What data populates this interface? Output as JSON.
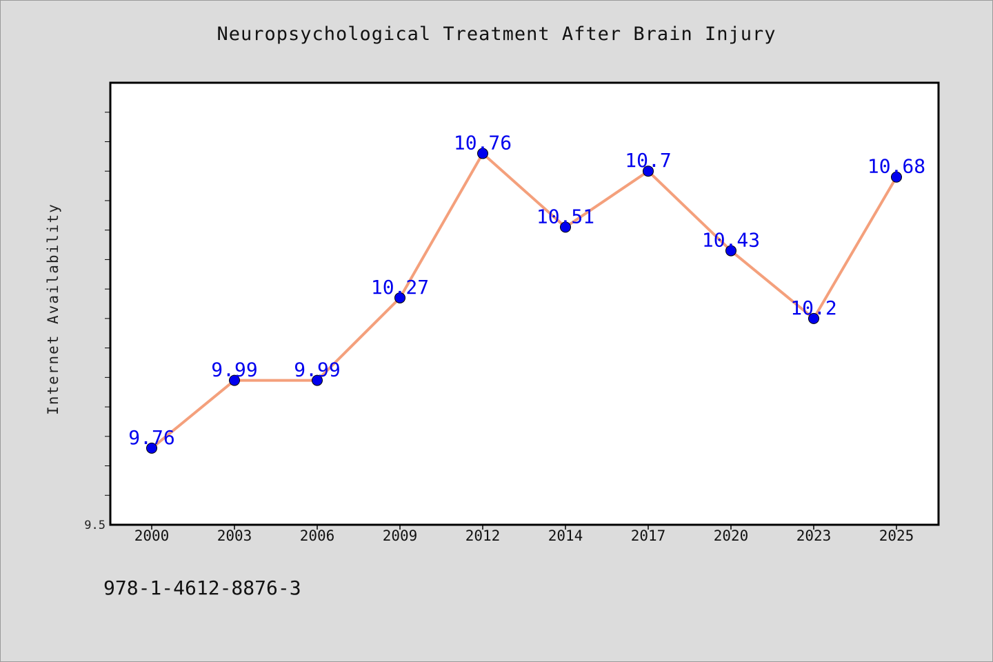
{
  "chart_data": {
    "type": "line",
    "title": "Neuropsychological Treatment After Brain Injury",
    "ylabel": "Internet Availability",
    "xlabel": "",
    "categories": [
      "2000",
      "2003",
      "2006",
      "2009",
      "2012",
      "2014",
      "2017",
      "2020",
      "2023",
      "2025"
    ],
    "series": [
      {
        "values": [
          9.76,
          9.99,
          9.99,
          10.27,
          10.76,
          10.51,
          10.7,
          10.43,
          10.2,
          10.68
        ],
        "data_labels": [
          "9.76",
          "9.99",
          "9.99",
          "10.27",
          "10.76",
          "10.51",
          "10.7",
          "10.43",
          "10.2",
          "10.68"
        ],
        "line_color": "#f4a07c",
        "marker_color": "#0000ee"
      }
    ],
    "ylim": [
      9.5,
      11.0
    ],
    "y_tick_labels": [
      "9.5"
    ],
    "grid": false,
    "label_color": "#0000ee"
  },
  "footer": {
    "isbn": "978-1-4612-8876-3"
  }
}
